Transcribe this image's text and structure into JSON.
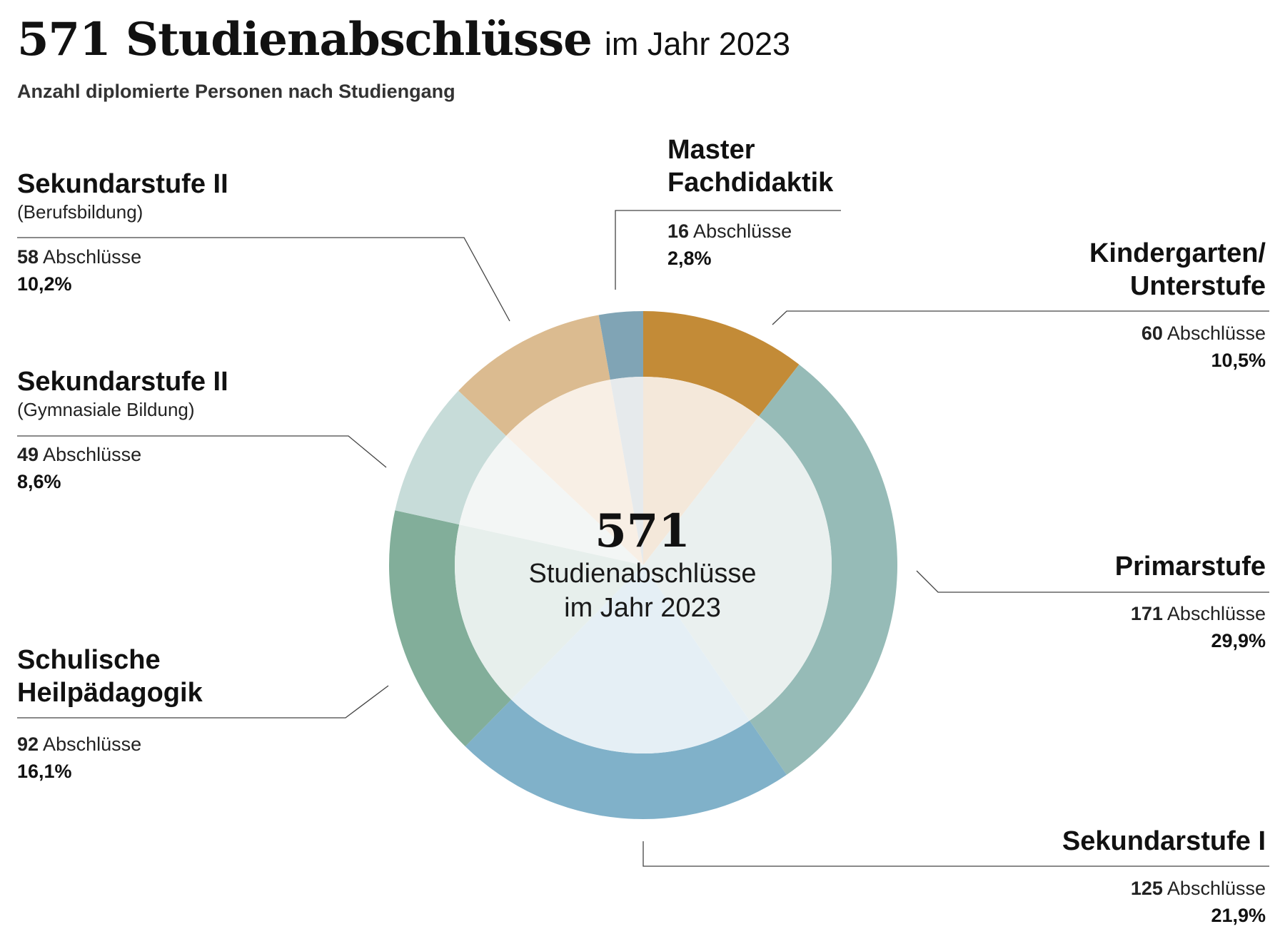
{
  "header": {
    "title": "571 Studienabschlüsse",
    "title_suffix": "im Jahr 2023",
    "subtitle": "Anzahl diplomierte Personen nach Studiengang"
  },
  "centre": {
    "total": "571",
    "text": "Studienabschlüsse\nim Jahr 2023"
  },
  "labels": [
    {
      "name": "Master\nFachdidaktik",
      "sub": "",
      "count": "16",
      "unit": " Abschlüsse",
      "pct": "2,8%"
    },
    {
      "name": "Kindergarten/\nUnterstufe",
      "sub": "",
      "count": "60",
      "unit": " Abschlüsse",
      "pct": "10,5%"
    },
    {
      "name": "Primarstufe",
      "sub": "",
      "count": "171",
      "unit": " Abschlüsse",
      "pct": "29,9%"
    },
    {
      "name": "Sekundarstufe I",
      "sub": "",
      "count": "125",
      "unit": " Abschlüsse",
      "pct": "21,9%"
    },
    {
      "name": "Schulische\nHeilpädagogik",
      "sub": "",
      "count": "92",
      "unit": " Abschlüsse",
      "pct": "16,1%"
    },
    {
      "name": "Sekundarstufe II",
      "sub": "(Gymnasiale Bildung)",
      "count": "49",
      "unit": " Abschlüsse",
      "pct": "8,6%"
    },
    {
      "name": "Sekundarstufe II",
      "sub": "(Berufsbildung)",
      "count": "58",
      "unit": " Abschlüsse",
      "pct": "10,2%"
    }
  ],
  "chart_data": {
    "type": "pie",
    "title": "571 Studienabschlüsse im Jahr 2023",
    "subtitle": "Anzahl diplomierte Personen nach Studiengang",
    "total": 571,
    "categories": [
      "Kindergarten/Unterstufe",
      "Primarstufe",
      "Sekundarstufe I",
      "Schulische Heilpädagogik",
      "Sekundarstufe II (Gymnasiale Bildung)",
      "Sekundarstufe II (Berufsbildung)",
      "Master Fachdidaktik"
    ],
    "values": [
      60,
      171,
      125,
      92,
      49,
      58,
      16
    ],
    "percent": [
      10.5,
      29.9,
      21.9,
      16.1,
      8.6,
      10.2,
      2.8
    ],
    "colors_outer": [
      "#c38b37",
      "#96bbb7",
      "#80b1c9",
      "#82ae9a",
      "#c7dcd9",
      "#dbbb90",
      "#80a4b5"
    ],
    "colors_inner": [
      "#f4e8da",
      "#eaf0ef",
      "#e5eff5",
      "#e7efec",
      "#f3f6f5",
      "#f8efe5",
      "#e6eaec"
    ]
  }
}
